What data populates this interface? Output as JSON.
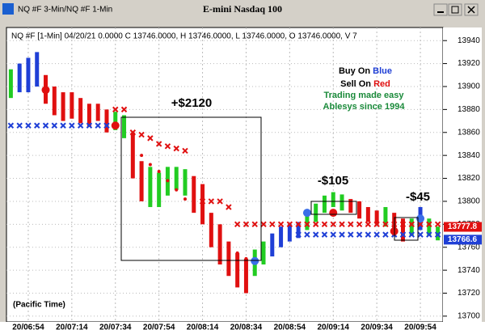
{
  "chart_data": {
    "type": "ohlc",
    "window_title": "NQ #F 3-Min/NQ #F 1-Min",
    "title": "E-mini Nasdaq 100",
    "info": "NQ #F [1-Min] 04/20/21  0.0000 C 13746.0000, H 13746.0000, L 13746.0000, O 13746.0000, V 7",
    "note": "(Pacific Time)",
    "legend": {
      "buy_prefix": "Buy On",
      "buy_word": "Blue",
      "sell_prefix": "Sell On",
      "sell_word": "Red",
      "line3": "Trading made easy",
      "line4": "Ablesys since 1994"
    },
    "annotations": [
      "+$2120",
      "-$105",
      "-$45"
    ],
    "xlim": [
      0,
      49
    ],
    "xticks": [
      {
        "value": 2,
        "label": "20/06:54"
      },
      {
        "value": 7,
        "label": "20/07:14"
      },
      {
        "value": 12,
        "label": "20/07:34"
      },
      {
        "value": 17,
        "label": "20/07:54"
      },
      {
        "value": 22,
        "label": "20/08:14"
      },
      {
        "value": 27,
        "label": "20/08:34"
      },
      {
        "value": 32,
        "label": "20/08:54"
      },
      {
        "value": 37,
        "label": "20/09:14"
      },
      {
        "value": 42,
        "label": "20/09:34"
      },
      {
        "value": 47,
        "label": "20/09:54"
      }
    ],
    "ylim": [
      13695,
      13950
    ],
    "yticks": [
      13700,
      13720,
      13740,
      13760,
      13780,
      13800,
      13820,
      13840,
      13860,
      13880,
      13900,
      13920,
      13940
    ],
    "grid": true,
    "high": [
      13915,
      13920,
      13925,
      13930,
      13910,
      13900,
      13895,
      13895,
      13890,
      13885,
      13885,
      13880,
      13878,
      13875,
      13860,
      13835,
      13830,
      13825,
      13830,
      13830,
      13828,
      13822,
      13815,
      13790,
      13780,
      13765,
      13755,
      13750,
      13758,
      13765,
      13772,
      13778,
      13780,
      13782,
      13790,
      13798,
      13805,
      13808,
      13806,
      13802,
      13800,
      13795,
      13792,
      13795,
      13790,
      13785,
      13785,
      13795,
      13785,
      13778
    ],
    "low": [
      13890,
      13895,
      13895,
      13900,
      13885,
      13875,
      13870,
      13872,
      13868,
      13865,
      13870,
      13860,
      13862,
      13855,
      13820,
      13800,
      13795,
      13795,
      13805,
      13810,
      13805,
      13790,
      13780,
      13760,
      13745,
      13735,
      13725,
      13720,
      13735,
      13745,
      13752,
      13760,
      13765,
      13768,
      13775,
      13782,
      13790,
      13795,
      13792,
      13790,
      13785,
      13782,
      13780,
      13778,
      13770,
      13765,
      13770,
      13775,
      13770,
      13766
    ],
    "bar_colors": [
      "#22cc22",
      "#1f3fd6",
      "#1f3fd6",
      "#1f3fd6",
      "#e01010",
      "#e01010",
      "#e01010",
      "#e01010",
      "#e01010",
      "#e01010",
      "#e01010",
      "#e01010",
      "#22cc22",
      "#22cc22",
      "#e01010",
      "#e01010",
      "#22cc22",
      "#22cc22",
      "#22cc22",
      "#22cc22",
      "#22cc22",
      "#e01010",
      "#e01010",
      "#e01010",
      "#e01010",
      "#e01010",
      "#e01010",
      "#e01010",
      "#22cc22",
      "#22cc22",
      "#1f3fd6",
      "#1f3fd6",
      "#1f3fd6",
      "#1f3fd6",
      "#22cc22",
      "#22cc22",
      "#22cc22",
      "#22cc22",
      "#22cc22",
      "#e01010",
      "#e01010",
      "#e01010",
      "#e01010",
      "#22cc22",
      "#e01010",
      "#e01010",
      "#22cc22",
      "#1f3fd6",
      "#22cc22",
      "#22cc22"
    ],
    "series": [
      {
        "color": "#e01010",
        "values": [
          null,
          null,
          null,
          null,
          null,
          null,
          null,
          null,
          null,
          null,
          null,
          null,
          13880,
          13880,
          13860,
          13858,
          13855,
          13850,
          13848,
          13846,
          13844,
          null,
          13800,
          13800,
          13800,
          13795,
          13780,
          13780,
          13780,
          13780,
          13780,
          13780,
          13780,
          13780,
          13780,
          13780,
          13780,
          13780,
          13780,
          13780,
          13780,
          13780,
          13780,
          13780,
          13780,
          13780,
          13780,
          13780,
          13780,
          13780
        ]
      },
      {
        "color": "#1f3fd6",
        "values": [
          13866,
          13866,
          13866,
          13866,
          13866,
          13866,
          13866,
          13866,
          13866,
          13866,
          13866,
          13866,
          13866,
          null,
          null,
          null,
          null,
          null,
          null,
          null,
          null,
          null,
          null,
          null,
          null,
          null,
          null,
          null,
          null,
          null,
          null,
          null,
          null,
          13771,
          13771,
          13771,
          13771,
          13771,
          13771,
          13771,
          13771,
          13771,
          13771,
          13771,
          13771,
          13771,
          13771,
          13771,
          13771,
          13771
        ]
      },
      {
        "color": "#e01010",
        "values": [
          null,
          null,
          null,
          null,
          null,
          null,
          null,
          null,
          null,
          null,
          null,
          null,
          null,
          null,
          13850,
          13840,
          13832,
          13826,
          13818,
          13810,
          13802,
          13794,
          13786,
          13778,
          13770,
          13762,
          13755,
          13750,
          null,
          null,
          null,
          null,
          null,
          null,
          null,
          null,
          null,
          null,
          null,
          null,
          null,
          null,
          null,
          null,
          null,
          null,
          null,
          null,
          null,
          null
        ]
      }
    ],
    "buy_signals": {
      "color": "#3a6ee8",
      "values": [
        null,
        null,
        null,
        null,
        null,
        null,
        null,
        null,
        null,
        null,
        null,
        null,
        null,
        null,
        null,
        null,
        null,
        null,
        null,
        null,
        null,
        null,
        null,
        null,
        null,
        null,
        null,
        null,
        13748,
        null,
        null,
        null,
        null,
        null,
        13790,
        null,
        null,
        null,
        null,
        null,
        null,
        null,
        null,
        null,
        null,
        null,
        null,
        13785,
        null,
        null
      ]
    },
    "sell_signals": {
      "color": "#e01010",
      "values": [
        null,
        null,
        null,
        null,
        13897,
        null,
        null,
        null,
        null,
        null,
        null,
        null,
        13866,
        null,
        null,
        null,
        null,
        null,
        null,
        null,
        null,
        null,
        null,
        null,
        null,
        null,
        null,
        null,
        null,
        null,
        null,
        null,
        null,
        null,
        null,
        null,
        null,
        13790,
        null,
        null,
        null,
        null,
        null,
        null,
        13774,
        null,
        null,
        null,
        null,
        null
      ]
    },
    "last_prices": [
      {
        "value": 13777.75,
        "label": "13777.8",
        "color": "#e01010"
      },
      {
        "value": 13766.6,
        "label": "13766.6",
        "color": "#1f3fd6"
      }
    ]
  }
}
